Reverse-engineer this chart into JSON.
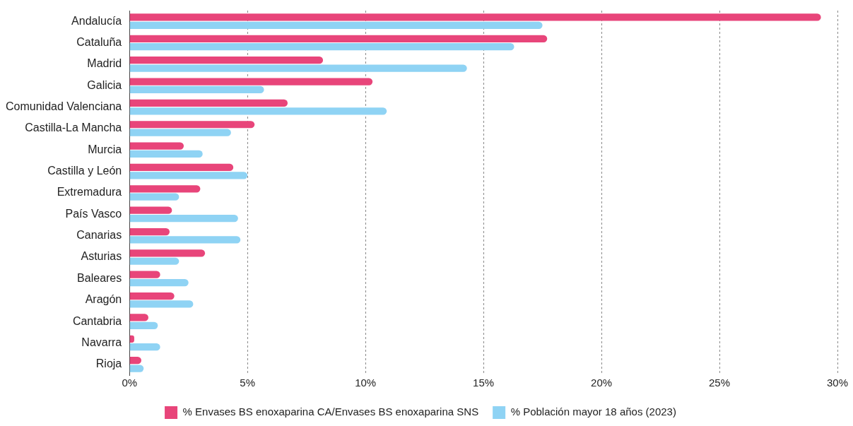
{
  "chart_data": {
    "type": "bar",
    "orientation": "horizontal",
    "categories": [
      "Andalucía",
      "Cataluña",
      "Madrid",
      "Galicia",
      "Comunidad Valenciana",
      "Castilla-La Mancha",
      "Murcia",
      "Castilla y León",
      "Extremadura",
      "País Vasco",
      "Canarias",
      "Asturias",
      "Baleares",
      "Aragón",
      "Cantabria",
      "Navarra",
      "Rioja"
    ],
    "series": [
      {
        "name": "% Envases BS enoxaparina CA/Envases BS enoxaparina SNS",
        "color": "#e8457a",
        "values": [
          29.3,
          17.7,
          8.2,
          10.3,
          6.7,
          5.3,
          2.3,
          4.4,
          3.0,
          1.8,
          1.7,
          3.2,
          1.3,
          1.9,
          0.8,
          0.2,
          0.5
        ]
      },
      {
        "name": "% Población mayor 18 años (2023)",
        "color": "#8fd3f4",
        "values": [
          17.5,
          16.3,
          14.3,
          5.7,
          10.9,
          4.3,
          3.1,
          5.0,
          2.1,
          4.6,
          4.7,
          2.1,
          2.5,
          2.7,
          1.2,
          1.3,
          0.6
        ]
      }
    ],
    "xlim": [
      0,
      30
    ],
    "xticks": [
      {
        "value": 0,
        "label": "0%"
      },
      {
        "value": 5,
        "label": "5%"
      },
      {
        "value": 10,
        "label": "10%"
      },
      {
        "value": 15,
        "label": "15%"
      },
      {
        "value": 20,
        "label": "20%"
      },
      {
        "value": 25,
        "label": "25%"
      },
      {
        "value": 30,
        "label": "30%"
      }
    ],
    "grid": "x",
    "legend": "bottom"
  }
}
